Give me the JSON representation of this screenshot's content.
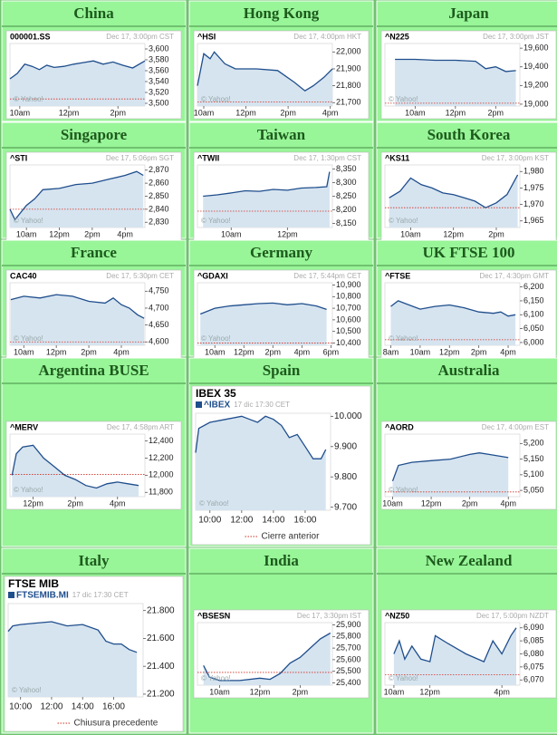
{
  "chart_data": [
    {
      "type": "line",
      "title": "China",
      "symbol": "000001.SS",
      "timestamp": "Dec 17, 3:00pm CST",
      "watermark": "© Yahoo!",
      "xlim": [
        9.6,
        15.1
      ],
      "xticks": [
        {
          "value": 10,
          "label": "10am"
        },
        {
          "value": 12,
          "label": "12pm"
        },
        {
          "value": 14,
          "label": "2pm"
        }
      ],
      "ylim": [
        3495,
        3610
      ],
      "yticks": [
        {
          "value": 3500,
          "label": "3,500"
        },
        {
          "value": 3520,
          "label": "3,520"
        },
        {
          "value": 3540,
          "label": "3,540"
        },
        {
          "value": 3560,
          "label": "3,560"
        },
        {
          "value": 3580,
          "label": "3,580"
        },
        {
          "value": 3600,
          "label": "3,600"
        }
      ],
      "prev_close": 3508,
      "x": [
        9.6,
        9.9,
        10.2,
        10.5,
        10.8,
        11.1,
        11.4,
        11.8,
        12.2,
        12.6,
        13,
        13.4,
        13.8,
        14.2,
        14.6,
        15.1
      ],
      "values": [
        3545,
        3555,
        3572,
        3568,
        3562,
        3570,
        3566,
        3568,
        3572,
        3575,
        3578,
        3572,
        3576,
        3570,
        3565,
        3578
      ]
    },
    {
      "type": "line",
      "title": "Hong Kong",
      "symbol": "^HSI",
      "timestamp": "Dec 17, 4:00pm HKT",
      "watermark": "© Yahoo!",
      "xlim": [
        9.7,
        16.1
      ],
      "xticks": [
        {
          "value": 10,
          "label": "10am"
        },
        {
          "value": 12,
          "label": "12pm"
        },
        {
          "value": 14,
          "label": "2pm"
        },
        {
          "value": 16,
          "label": "4pm"
        }
      ],
      "ylim": [
        21680,
        22050
      ],
      "yticks": [
        {
          "value": 21700,
          "label": "21,700"
        },
        {
          "value": 21800,
          "label": "21,800"
        },
        {
          "value": 21900,
          "label": "21,900"
        },
        {
          "value": 22000,
          "label": "22,000"
        }
      ],
      "prev_close": 21705,
      "x": [
        9.7,
        10,
        10.3,
        10.5,
        11,
        11.5,
        12.5,
        13.5,
        14.3,
        14.8,
        15.2,
        15.7,
        16.1
      ],
      "values": [
        21800,
        21990,
        21960,
        22000,
        21930,
        21900,
        21900,
        21890,
        21820,
        21770,
        21800,
        21850,
        21900
      ]
    },
    {
      "type": "line",
      "title": "Japan",
      "symbol": "^N225",
      "timestamp": "Dec 17, 3:00pm JST",
      "watermark": "© Yahoo!",
      "xlim": [
        8.5,
        15.2
      ],
      "xticks": [
        {
          "value": 10,
          "label": "10am"
        },
        {
          "value": 12,
          "label": "12pm"
        },
        {
          "value": 14,
          "label": "2pm"
        }
      ],
      "ylim": [
        18980,
        19650
      ],
      "yticks": [
        {
          "value": 19000,
          "label": "19,000"
        },
        {
          "value": 19200,
          "label": "19,200"
        },
        {
          "value": 19400,
          "label": "19,400"
        },
        {
          "value": 19600,
          "label": "19,600"
        }
      ],
      "prev_close": 19010,
      "x": [
        9,
        10,
        11,
        12,
        13,
        13.5,
        14,
        14.5,
        15
      ],
      "values": [
        19480,
        19480,
        19470,
        19470,
        19460,
        19380,
        19400,
        19350,
        19360
      ]
    },
    {
      "type": "line",
      "title": "Singapore",
      "symbol": "^STI",
      "timestamp": "Dec 17, 5:06pm SGT",
      "watermark": "© Yahoo!",
      "xlim": [
        9,
        17.2
      ],
      "xticks": [
        {
          "value": 10,
          "label": "10am"
        },
        {
          "value": 12,
          "label": "12pm"
        },
        {
          "value": 14,
          "label": "2pm"
        },
        {
          "value": 16,
          "label": "4pm"
        }
      ],
      "ylim": [
        2826,
        2874
      ],
      "yticks": [
        {
          "value": 2830,
          "label": "2,830"
        },
        {
          "value": 2840,
          "label": "2,840"
        },
        {
          "value": 2850,
          "label": "2,850"
        },
        {
          "value": 2860,
          "label": "2,860"
        },
        {
          "value": 2870,
          "label": "2,870"
        }
      ],
      "prev_close": 2840,
      "x": [
        9,
        9.3,
        10,
        10.5,
        11,
        12,
        13,
        14,
        15,
        16,
        16.7,
        17.1
      ],
      "values": [
        2840,
        2832,
        2843,
        2848,
        2855,
        2856,
        2859,
        2860,
        2863,
        2866,
        2869,
        2866
      ]
    },
    {
      "type": "line",
      "title": "Taiwan",
      "symbol": "^TWII",
      "timestamp": "Dec 17, 1:30pm CST",
      "watermark": "© Yahoo!",
      "xlim": [
        8.8,
        13.6
      ],
      "xticks": [
        {
          "value": 10,
          "label": "10am"
        },
        {
          "value": 12,
          "label": "12pm"
        }
      ],
      "ylim": [
        8135,
        8365
      ],
      "yticks": [
        {
          "value": 8150,
          "label": "8,150"
        },
        {
          "value": 8200,
          "label": "8,200"
        },
        {
          "value": 8250,
          "label": "8,250"
        },
        {
          "value": 8300,
          "label": "8,300"
        },
        {
          "value": 8350,
          "label": "8,350"
        }
      ],
      "prev_close": 8195,
      "x": [
        9,
        9.5,
        10,
        10.5,
        11,
        11.5,
        12,
        12.5,
        13,
        13.4,
        13.5
      ],
      "values": [
        8250,
        8255,
        8262,
        8270,
        8268,
        8275,
        8272,
        8280,
        8282,
        8285,
        8340
      ]
    },
    {
      "type": "line",
      "title": "South Korea",
      "symbol": "^KS11",
      "timestamp": "Dec 17, 3:00pm KST",
      "watermark": "© Yahoo!",
      "xlim": [
        8.8,
        15.1
      ],
      "xticks": [
        {
          "value": 10,
          "label": "10am"
        },
        {
          "value": 12,
          "label": "12pm"
        },
        {
          "value": 14,
          "label": "2pm"
        }
      ],
      "ylim": [
        1963,
        1982
      ],
      "yticks": [
        {
          "value": 1965,
          "label": "1,965"
        },
        {
          "value": 1970,
          "label": "1,970"
        },
        {
          "value": 1975,
          "label": "1,975"
        },
        {
          "value": 1980,
          "label": "1,980"
        }
      ],
      "prev_close": 1969,
      "x": [
        9,
        9.5,
        10,
        10.5,
        11,
        11.5,
        12,
        12.5,
        13,
        13.5,
        14,
        14.5,
        15
      ],
      "values": [
        1972,
        1974,
        1978,
        1976,
        1975,
        1973.5,
        1973,
        1972,
        1971,
        1969,
        1970.5,
        1973,
        1979
      ]
    },
    {
      "type": "line",
      "title": "France",
      "symbol": "CAC40",
      "timestamp": "Dec 17, 5:30pm CET",
      "watermark": "© Yahoo!",
      "xlim": [
        9.15,
        17.45
      ],
      "xticks": [
        {
          "value": 10,
          "label": "10am"
        },
        {
          "value": 12,
          "label": "12pm"
        },
        {
          "value": 14,
          "label": "2pm"
        },
        {
          "value": 16,
          "label": "4pm"
        }
      ],
      "ylim": [
        4590,
        4775
      ],
      "yticks": [
        {
          "value": 4600,
          "label": "4,600"
        },
        {
          "value": 4650,
          "label": "4,650"
        },
        {
          "value": 4700,
          "label": "4,700"
        },
        {
          "value": 4750,
          "label": "4,750"
        }
      ],
      "prev_close": 4600,
      "x": [
        9.2,
        10,
        11,
        12,
        13,
        14,
        15,
        15.5,
        16,
        16.5,
        17,
        17.4
      ],
      "values": [
        4725,
        4735,
        4730,
        4740,
        4735,
        4720,
        4715,
        4730,
        4710,
        4700,
        4680,
        4670
      ]
    },
    {
      "type": "line",
      "title": "Germany",
      "symbol": "^GDAXI",
      "timestamp": "Dec 17, 5:44pm CET",
      "watermark": "© Yahoo!",
      "xlim": [
        8.8,
        18.1
      ],
      "xticks": [
        {
          "value": 10,
          "label": "10am"
        },
        {
          "value": 12,
          "label": "12pm"
        },
        {
          "value": 14,
          "label": "2pm"
        },
        {
          "value": 16,
          "label": "4pm"
        },
        {
          "value": 18,
          "label": "6pm"
        }
      ],
      "ylim": [
        10380,
        10920
      ],
      "yticks": [
        {
          "value": 10400,
          "label": "10,400"
        },
        {
          "value": 10500,
          "label": "10,500"
        },
        {
          "value": 10600,
          "label": "10,600"
        },
        {
          "value": 10700,
          "label": "10,700"
        },
        {
          "value": 10800,
          "label": "10,800"
        },
        {
          "value": 10900,
          "label": "10,900"
        }
      ],
      "prev_close": 10400,
      "x": [
        9,
        10,
        11,
        12,
        13,
        14,
        15,
        16,
        17,
        17.7
      ],
      "values": [
        10650,
        10700,
        10720,
        10730,
        10740,
        10745,
        10730,
        10740,
        10720,
        10690
      ]
    },
    {
      "type": "line",
      "title": "UK FTSE 100",
      "symbol": "^FTSE",
      "timestamp": "Dec 17, 4:30pm GMT",
      "watermark": "© Yahoo!",
      "xlim": [
        7.6,
        16.8
      ],
      "xticks": [
        {
          "value": 8,
          "label": "8am"
        },
        {
          "value": 10,
          "label": "10am"
        },
        {
          "value": 12,
          "label": "12pm"
        },
        {
          "value": 14,
          "label": "2pm"
        },
        {
          "value": 16,
          "label": "4pm"
        }
      ],
      "ylim": [
        5990,
        6215
      ],
      "yticks": [
        {
          "value": 6000,
          "label": "6,000"
        },
        {
          "value": 6050,
          "label": "6,050"
        },
        {
          "value": 6100,
          "label": "6,100"
        },
        {
          "value": 6150,
          "label": "6,150"
        },
        {
          "value": 6200,
          "label": "6,200"
        }
      ],
      "prev_close": 6010,
      "x": [
        8,
        8.5,
        9,
        10,
        11,
        12,
        13,
        14,
        15,
        15.5,
        16,
        16.5
      ],
      "values": [
        6130,
        6150,
        6140,
        6120,
        6130,
        6135,
        6125,
        6110,
        6105,
        6110,
        6095,
        6100
      ]
    },
    {
      "type": "line",
      "title": "Argentina BUSE",
      "symbol": "^MERV",
      "timestamp": "Dec 17, 4:58pm ART",
      "watermark": "© Yahoo!",
      "xlim": [
        10.9,
        17.3
      ],
      "xticks": [
        {
          "value": 12,
          "label": "12pm"
        },
        {
          "value": 14,
          "label": "2pm"
        },
        {
          "value": 16,
          "label": "4pm"
        }
      ],
      "ylim": [
        11750,
        12480
      ],
      "yticks": [
        {
          "value": 11800,
          "label": "11,800"
        },
        {
          "value": 12000,
          "label": "12,000"
        },
        {
          "value": 12200,
          "label": "12,200"
        },
        {
          "value": 12400,
          "label": "12,400"
        }
      ],
      "prev_close": 12010,
      "x": [
        11,
        11.2,
        11.5,
        12,
        12.5,
        13,
        13.5,
        14,
        14.5,
        15,
        15.5,
        16,
        16.5,
        17
      ],
      "values": [
        12000,
        12250,
        12330,
        12350,
        12200,
        12100,
        12000,
        11950,
        11880,
        11850,
        11900,
        11920,
        11900,
        11880
      ]
    },
    {
      "type": "line",
      "title": "Spain",
      "name": "IBEX 35",
      "symbol": "^IBEX",
      "timestamp": "17 dic 17:30 CET",
      "watermark": "© Yahoo!",
      "legend": "Cierre anterior",
      "xlim": [
        9.1,
        17.6
      ],
      "xticks": [
        {
          "value": 10,
          "label": "10:00"
        },
        {
          "value": 12,
          "label": "12:00"
        },
        {
          "value": 14,
          "label": "14:00"
        },
        {
          "value": 16,
          "label": "16:00"
        }
      ],
      "ylim": [
        9690,
        10010
      ],
      "yticks": [
        {
          "value": 9700,
          "label": "9.700"
        },
        {
          "value": 9800,
          "label": "9.800"
        },
        {
          "value": 9900,
          "label": "9.900"
        },
        {
          "value": 10000,
          "label": "10.000"
        }
      ],
      "x": [
        9.1,
        9.3,
        10,
        11,
        12,
        12.5,
        13,
        13.5,
        14,
        14.5,
        15,
        15.5,
        16,
        16.5,
        17,
        17.3
      ],
      "values": [
        9880,
        9960,
        9980,
        9990,
        10000,
        9990,
        9980,
        10000,
        9990,
        9970,
        9930,
        9940,
        9900,
        9860,
        9860,
        9890
      ]
    },
    {
      "type": "line",
      "title": "Australia",
      "symbol": "^AORD",
      "timestamp": "Dec 17, 4:00pm EST",
      "watermark": "© Yahoo!",
      "xlim": [
        9.6,
        16.6
      ],
      "xticks": [
        {
          "value": 10,
          "label": "10am"
        },
        {
          "value": 12,
          "label": "12pm"
        },
        {
          "value": 14,
          "label": "2pm"
        },
        {
          "value": 16,
          "label": "4pm"
        }
      ],
      "ylim": [
        5030,
        5230
      ],
      "yticks": [
        {
          "value": 5050,
          "label": "5,050"
        },
        {
          "value": 5100,
          "label": "5,100"
        },
        {
          "value": 5150,
          "label": "5,150"
        },
        {
          "value": 5200,
          "label": "5,200"
        }
      ],
      "prev_close": 5045,
      "x": [
        10,
        10.3,
        11,
        12,
        13,
        14,
        14.5,
        15,
        15.5,
        16
      ],
      "values": [
        5080,
        5130,
        5140,
        5145,
        5150,
        5165,
        5170,
        5165,
        5160,
        5155
      ]
    },
    {
      "type": "line",
      "title": "Italy",
      "name": "FTSE MIB",
      "symbol": "FTSEMIB.MI",
      "timestamp": "17 dic 17:30 CET",
      "watermark": "© Yahoo!",
      "legend": "Chiusura precedente",
      "xlim": [
        9.2,
        17.9
      ],
      "xticks": [
        {
          "value": 10,
          "label": "10:00"
        },
        {
          "value": 12,
          "label": "12:00"
        },
        {
          "value": 14,
          "label": "14:00"
        },
        {
          "value": 16,
          "label": "16:00"
        }
      ],
      "ylim": [
        21180,
        21850
      ],
      "yticks": [
        {
          "value": 21200,
          "label": "21.200"
        },
        {
          "value": 21400,
          "label": "21.400"
        },
        {
          "value": 21600,
          "label": "21.600"
        },
        {
          "value": 21800,
          "label": "21.800"
        }
      ],
      "x": [
        9.2,
        9.5,
        10,
        11,
        12,
        13,
        14,
        15,
        15.5,
        16,
        16.5,
        17,
        17.5
      ],
      "values": [
        21650,
        21690,
        21700,
        21710,
        21720,
        21690,
        21700,
        21660,
        21580,
        21560,
        21560,
        21520,
        21500
      ]
    },
    {
      "type": "line",
      "title": "India",
      "symbol": "^BSESN",
      "timestamp": "Dec 17, 3:30pm IST",
      "watermark": "© Yahoo!",
      "xlim": [
        8.9,
        15.6
      ],
      "xticks": [
        {
          "value": 10,
          "label": "10am"
        },
        {
          "value": 12,
          "label": "12pm"
        },
        {
          "value": 14,
          "label": "2pm"
        }
      ],
      "ylim": [
        25380,
        25920
      ],
      "yticks": [
        {
          "value": 25400,
          "label": "25,400"
        },
        {
          "value": 25500,
          "label": "25,500"
        },
        {
          "value": 25600,
          "label": "25,600"
        },
        {
          "value": 25700,
          "label": "25,700"
        },
        {
          "value": 25800,
          "label": "25,800"
        },
        {
          "value": 25900,
          "label": "25,900"
        }
      ],
      "prev_close": 25490,
      "x": [
        9.2,
        9.5,
        10,
        11,
        12,
        12.5,
        13,
        13.5,
        14,
        14.5,
        15,
        15.5
      ],
      "values": [
        25550,
        25450,
        25420,
        25420,
        25440,
        25430,
        25480,
        25570,
        25620,
        25700,
        25780,
        25830
      ]
    },
    {
      "type": "line",
      "title": "New Zealand",
      "symbol": "^NZ50",
      "timestamp": "Dec 17, 5:00pm NZDT",
      "watermark": "© Yahoo!",
      "xlim": [
        9.5,
        17
      ],
      "xticks": [
        {
          "value": 10,
          "label": "10am"
        },
        {
          "value": 12,
          "label": "12pm"
        },
        {
          "value": 16,
          "label": "4pm"
        }
      ],
      "ylim": [
        6068,
        6092
      ],
      "yticks": [
        {
          "value": 6070,
          "label": "6,070"
        },
        {
          "value": 6075,
          "label": "6,075"
        },
        {
          "value": 6080,
          "label": "6,080"
        },
        {
          "value": 6085,
          "label": "6,085"
        },
        {
          "value": 6090,
          "label": "6,090"
        }
      ],
      "prev_close": 6072,
      "x": [
        10,
        10.3,
        10.6,
        11,
        11.5,
        12,
        12.3,
        13,
        14,
        15,
        15.5,
        16,
        16.5,
        16.8
      ],
      "values": [
        6080,
        6085,
        6078,
        6083,
        6078,
        6077,
        6087,
        6084,
        6080,
        6077,
        6085,
        6080,
        6087,
        6090
      ]
    }
  ]
}
